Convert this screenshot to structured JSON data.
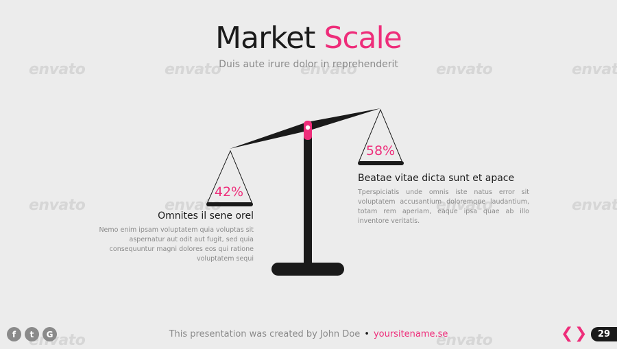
{
  "slide": {
    "title_part1": "Market",
    "title_part2": "Scale",
    "subtitle": "Duis aute irure dolor in reprehenderit",
    "watermark": "envato"
  },
  "scale": {
    "left_percent": "42%",
    "right_percent": "58%",
    "left_value": 42,
    "right_value": 58
  },
  "left_block": {
    "heading": "Omnites il sene orel",
    "body": "Nemo enim ipsam voluptatem quia voluptas sit aspernatur aut odit aut fugit, sed quia consequuntur magni dolores eos qui ratione voluptatem sequi"
  },
  "right_block": {
    "heading": "Beatae vitae dicta sunt et apace",
    "body": "Tperspiciatis unde omnis iste natus error sit voluptatem accusantium doloremque laudantium, totam rem aperiam, eaque ipsa quae ab illo inventore veritatis."
  },
  "footer": {
    "credit": "This presentation was created by John Doe",
    "site": "yoursitename.se",
    "social": [
      "f",
      "t",
      "G"
    ],
    "page_number": "29",
    "prev_glyph": "❮",
    "next_glyph": "❯"
  },
  "colors": {
    "accent": "#ee2d7a",
    "dark": "#1a1a1a",
    "muted": "#8a8a8a",
    "background": "#ececec"
  }
}
